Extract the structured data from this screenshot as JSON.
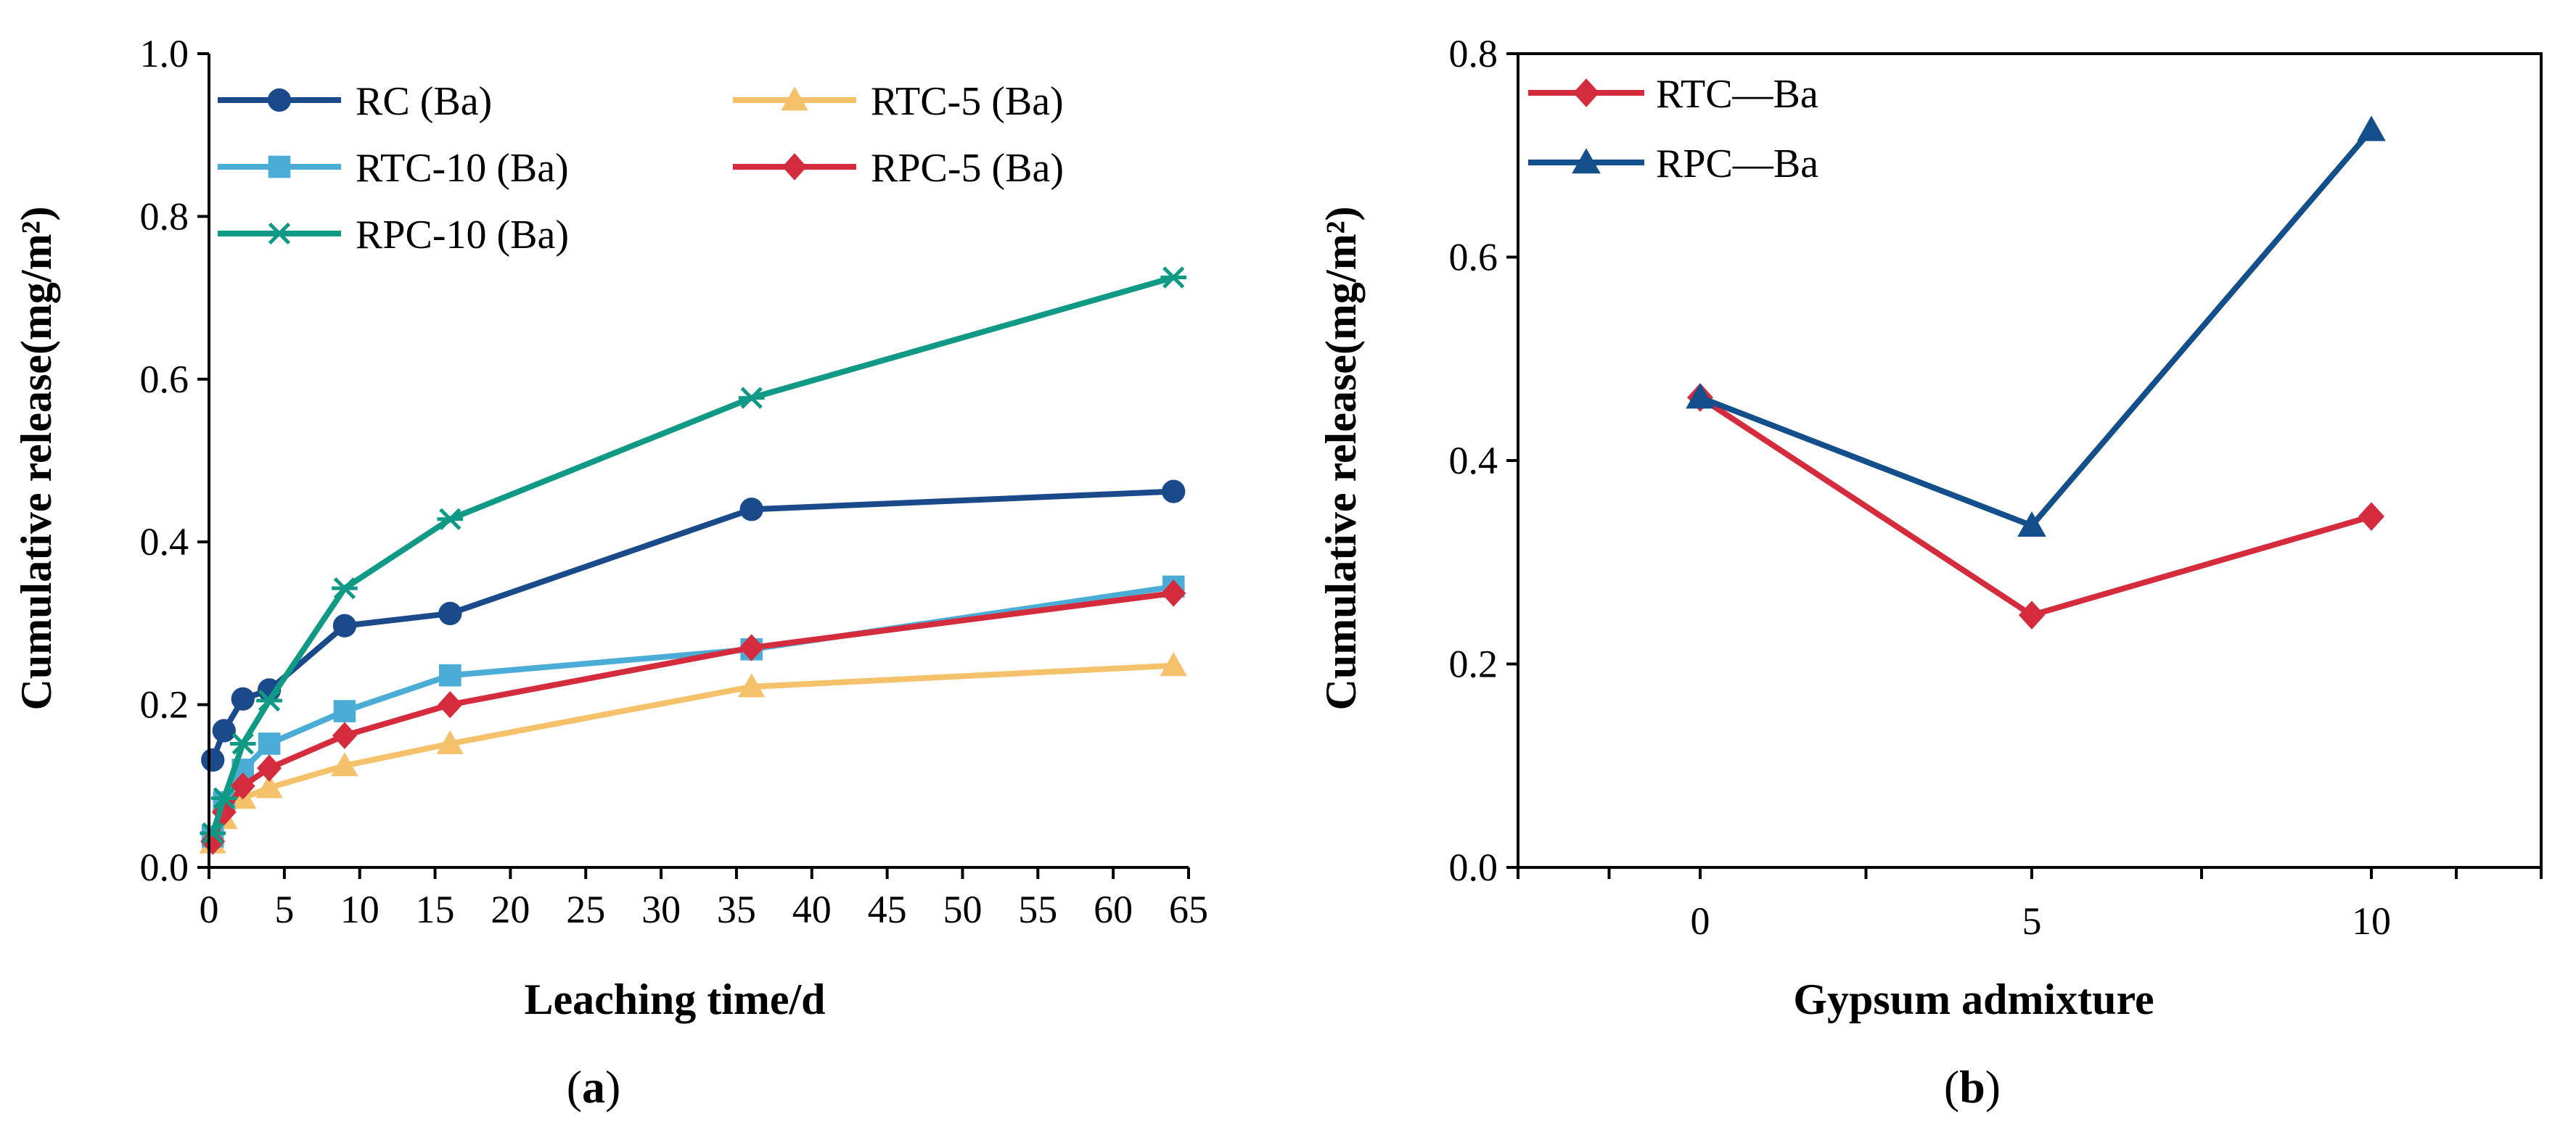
{
  "chart_data": [
    {
      "type": "line",
      "panel_label_open": "(",
      "panel_label": "a",
      "panel_label_close": ")",
      "xlabel": "Leaching time/d",
      "ylabel": "Cumulative release(mg/m²)",
      "xlim": [
        0,
        65
      ],
      "ylim": [
        0,
        1.0
      ],
      "xticks": [
        0,
        5,
        10,
        15,
        20,
        25,
        30,
        35,
        40,
        45,
        50,
        55,
        60,
        65
      ],
      "yticks": [
        "0.0",
        "0.2",
        "0.4",
        "0.6",
        "0.8",
        "1.0"
      ],
      "grid": false,
      "legend_position": "top-left (2 columns)",
      "x": [
        0.25,
        1,
        2.25,
        4,
        9,
        16,
        36,
        64
      ],
      "series": [
        {
          "name": "RC (Ba)",
          "color": "#1a4a8a",
          "marker": "circle",
          "values": [
            0.132,
            0.168,
            0.207,
            0.218,
            0.297,
            0.312,
            0.44,
            0.462
          ]
        },
        {
          "name": "RTC-5 (Ba)",
          "color": "#f5c26b",
          "marker": "triangle",
          "values": [
            0.03,
            0.06,
            0.085,
            0.098,
            0.125,
            0.152,
            0.222,
            0.248
          ]
        },
        {
          "name": "RTC-10 (Ba)",
          "color": "#4bacd6",
          "marker": "square",
          "values": [
            0.038,
            0.08,
            0.12,
            0.152,
            0.192,
            0.236,
            0.268,
            0.345
          ]
        },
        {
          "name": "RPC-5 (Ba)",
          "color": "#d42c3c",
          "marker": "diamond",
          "values": [
            0.032,
            0.068,
            0.1,
            0.122,
            0.162,
            0.2,
            0.27,
            0.337
          ]
        },
        {
          "name": "RPC-10 (Ba)",
          "color": "#109a85",
          "marker": "asterisk",
          "values": [
            0.042,
            0.085,
            0.152,
            0.205,
            0.343,
            0.428,
            0.577,
            0.725
          ]
        }
      ]
    },
    {
      "type": "line",
      "panel_label_open": "(",
      "panel_label": "b",
      "panel_label_close": ")",
      "xlabel": "Gypsum admixture",
      "ylabel": "Cumulative release(mg/m²)",
      "categories": [
        "0",
        "5",
        "10"
      ],
      "ylim": [
        0,
        0.8
      ],
      "yticks": [
        "0.0",
        "0.2",
        "0.4",
        "0.6",
        "0.8"
      ],
      "grid": false,
      "legend_position": "top-left",
      "series": [
        {
          "name": "RTC—Ba",
          "color": "#d42c3c",
          "marker": "diamond",
          "values": [
            0.462,
            0.248,
            0.345
          ]
        },
        {
          "name": "RPC—Ba",
          "color": "#134f8a",
          "marker": "triangle",
          "values": [
            0.462,
            0.336,
            0.725
          ]
        }
      ]
    }
  ]
}
